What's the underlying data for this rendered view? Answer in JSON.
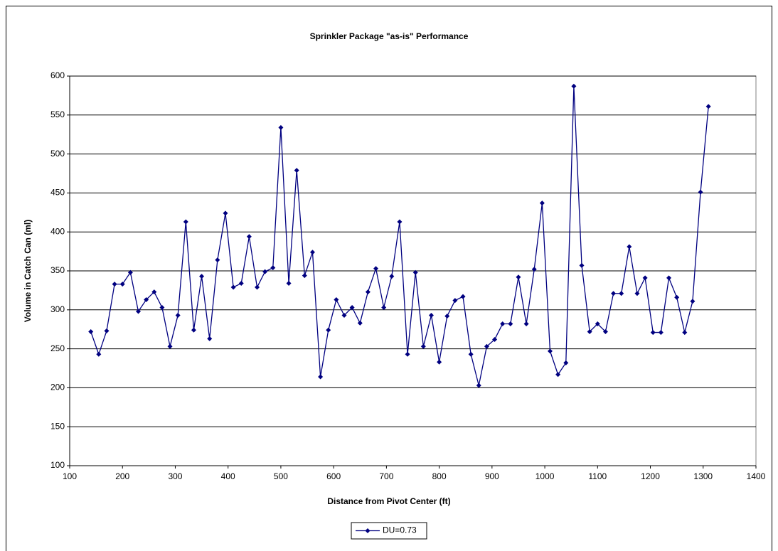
{
  "chart_data": {
    "type": "line",
    "title": "Sprinkler Package \"as-is\" Performance",
    "x_label": "Distance from Pivot Center (ft)",
    "y_label": "Volume in Catch Can (ml)",
    "x": [
      140,
      155,
      170,
      185,
      200,
      215,
      230,
      245,
      260,
      275,
      290,
      305,
      320,
      335,
      350,
      365,
      380,
      395,
      410,
      425,
      440,
      455,
      470,
      485,
      500,
      515,
      530,
      545,
      560,
      575,
      590,
      605,
      620,
      635,
      650,
      665,
      680,
      695,
      710,
      725,
      740,
      755,
      770,
      785,
      800,
      815,
      830,
      845,
      860,
      875,
      890,
      905,
      920,
      935,
      950,
      965,
      980,
      995,
      1010,
      1025,
      1040,
      1055,
      1070,
      1085,
      1100,
      1115,
      1130,
      1145,
      1160,
      1175,
      1190,
      1205,
      1220,
      1235,
      1250,
      1265,
      1280,
      1295,
      1310
    ],
    "series": [
      {
        "name": "DU=0.73",
        "color": "#000080",
        "values": [
          272,
          243,
          273,
          333,
          333,
          348,
          298,
          313,
          323,
          303,
          253,
          293,
          413,
          274,
          343,
          263,
          364,
          424,
          329,
          334,
          394,
          329,
          349,
          354,
          534,
          334,
          479,
          344,
          374,
          214,
          274,
          313,
          293,
          303,
          283,
          323,
          353,
          303,
          343,
          413,
          243,
          348,
          253,
          293,
          233,
          292,
          312,
          317,
          243,
          203,
          253,
          262,
          282,
          282,
          342,
          282,
          352,
          437,
          247,
          217,
          232,
          587,
          357,
          272,
          282,
          272,
          321,
          321,
          381,
          321,
          341,
          271,
          271,
          341,
          316,
          271,
          311,
          451,
          561
        ]
      }
    ],
    "xlim": [
      100,
      1400
    ],
    "xticks": [
      100,
      200,
      300,
      400,
      500,
      600,
      700,
      800,
      900,
      1000,
      1100,
      1200,
      1300,
      1400
    ],
    "ylim": [
      100,
      600
    ],
    "yticks": [
      100,
      150,
      200,
      250,
      300,
      350,
      400,
      450,
      500,
      550,
      600
    ],
    "grid": true,
    "legend": "bottom"
  }
}
